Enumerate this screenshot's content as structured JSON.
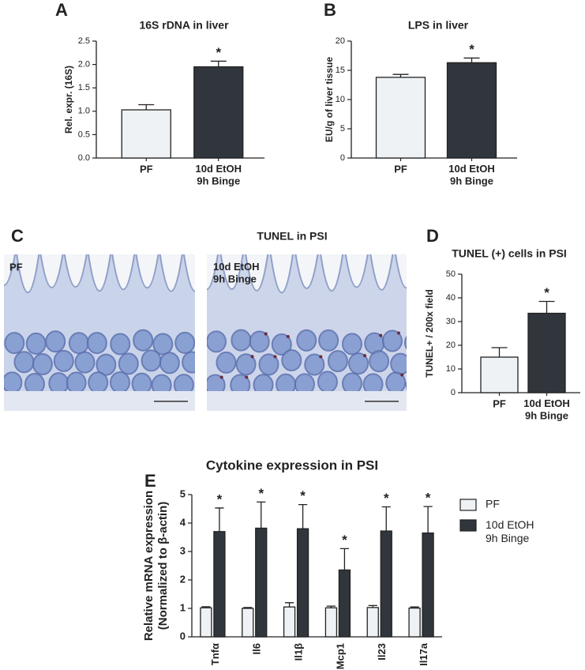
{
  "micrograph": {
    "panel": "C",
    "title": "TUNEL in PSI",
    "images": [
      {
        "label": "PF"
      },
      {
        "label": "10d EtOH\n9h Binge"
      }
    ]
  },
  "chart_data": [
    {
      "type": "bar",
      "panel": "A",
      "title": "16S rDNA in liver",
      "y_label": "Rel. expr. (16S)",
      "categories": [
        "PF",
        "10d EtOH\n9h Binge"
      ],
      "values": [
        1.03,
        1.95
      ],
      "errors": [
        0.11,
        0.12
      ],
      "colors": [
        "#eef2f5",
        "#30363c"
      ],
      "significance": [
        null,
        "*"
      ],
      "ylim": [
        0,
        2.5
      ],
      "yticks": [
        {
          "value": 0,
          "label": "0.0"
        },
        0.5,
        {
          "value": 1,
          "label": "1.0"
        },
        1.5,
        {
          "value": 2,
          "label": "2.0"
        },
        2.5
      ]
    },
    {
      "type": "bar",
      "panel": "B",
      "title": "LPS in liver",
      "y_label": "EU/g of liver tissue",
      "categories": [
        "PF",
        "10d EtOH\n9h Binge"
      ],
      "values": [
        13.8,
        16.3
      ],
      "errors": [
        0.5,
        0.8
      ],
      "colors": [
        "#eef2f5",
        "#30363c"
      ],
      "significance": [
        null,
        "*"
      ],
      "ylim": [
        0,
        20
      ],
      "yticks": [
        0,
        5,
        10,
        15,
        20
      ]
    },
    {
      "type": "bar",
      "panel": "D",
      "title": "TUNEL (+) cells in PSI",
      "y_label": "TUNEL+ / 200x field",
      "categories": [
        "PF",
        "10d EtOH\n9h Binge"
      ],
      "values": [
        15,
        33.5
      ],
      "errors": [
        4,
        5
      ],
      "colors": [
        "#eef2f5",
        "#30363c"
      ],
      "significance": [
        null,
        "*"
      ],
      "ylim": [
        0,
        50
      ],
      "yticks": [
        0,
        10,
        20,
        30,
        40,
        50
      ]
    },
    {
      "type": "bar",
      "panel": "E",
      "title": "Cytokine expression in PSI",
      "y_label": "Relative mRNA expression\n(Normalized to β-actin)",
      "categories": [
        "Tnfα",
        "Il6",
        "Il1β",
        "Mcp1",
        "Il23",
        "Il17a"
      ],
      "series": [
        {
          "name": "PF",
          "color": "#eef2f5",
          "values": [
            1.02,
            1.0,
            1.05,
            1.02,
            1.03,
            1.01
          ],
          "errors": [
            0.04,
            0.03,
            0.15,
            0.06,
            0.07,
            0.04
          ]
        },
        {
          "name": "10d EtOH\n9h Binge",
          "color": "#30363c",
          "values": [
            3.7,
            3.82,
            3.8,
            2.35,
            3.72,
            3.65
          ],
          "errors": [
            0.83,
            0.92,
            0.85,
            0.75,
            0.85,
            0.93
          ],
          "significance": [
            "*",
            "*",
            "*",
            "*",
            "*",
            "*"
          ]
        }
      ],
      "legend": "right",
      "ylim": [
        0,
        5
      ],
      "yticks": [
        0,
        1,
        2,
        3,
        4,
        5
      ]
    }
  ]
}
